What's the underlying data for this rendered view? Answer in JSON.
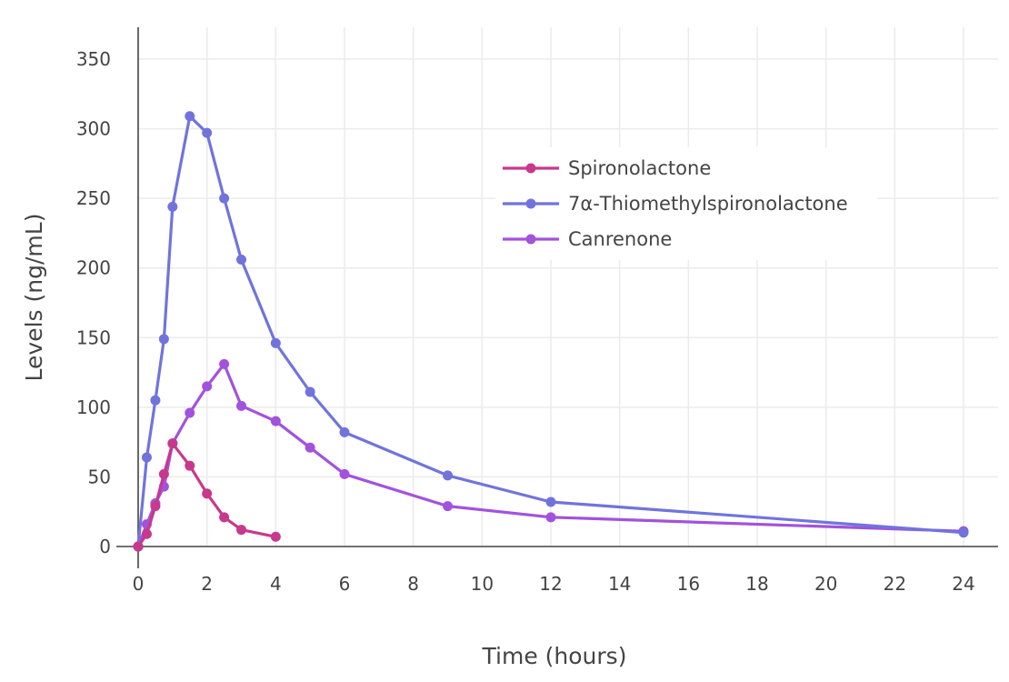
{
  "chart_data": {
    "type": "line",
    "xlabel": "Time (hours)",
    "ylabel": "Levels (ng/mL)",
    "xlim": [
      0,
      24
    ],
    "ylim": [
      0,
      370
    ],
    "xticks": [
      0,
      2,
      4,
      6,
      8,
      10,
      12,
      14,
      16,
      18,
      20,
      22,
      24
    ],
    "yticks": [
      0,
      50,
      100,
      150,
      200,
      250,
      300,
      350
    ],
    "grid": true,
    "legend_position": "top-right",
    "series": [
      {
        "name": "Spironolactone",
        "color": "#c8388c",
        "x": [
          0,
          0.25,
          0.5,
          0.75,
          1,
          1.5,
          2,
          2.5,
          3,
          4
        ],
        "y": [
          0,
          9,
          29,
          52,
          74,
          58,
          38,
          21,
          12,
          7
        ]
      },
      {
        "name": "7α-Thiomethylspironolactone",
        "color": "#7173dd",
        "x": [
          0,
          0.25,
          0.5,
          0.75,
          1,
          1.5,
          2,
          2.5,
          3,
          4,
          5,
          6,
          9,
          12,
          24
        ],
        "y": [
          0,
          64,
          105,
          149,
          244,
          309,
          297,
          250,
          206,
          146,
          111,
          82,
          51,
          32,
          10
        ]
      },
      {
        "name": "Canrenone",
        "color": "#a252dd",
        "x": [
          0,
          0.25,
          0.5,
          0.75,
          1,
          1.5,
          2,
          2.5,
          3,
          4,
          5,
          6,
          9,
          12,
          24
        ],
        "y": [
          0,
          16,
          31,
          43,
          74,
          96,
          115,
          131,
          101,
          90,
          71,
          52,
          29,
          21,
          11
        ]
      }
    ]
  }
}
